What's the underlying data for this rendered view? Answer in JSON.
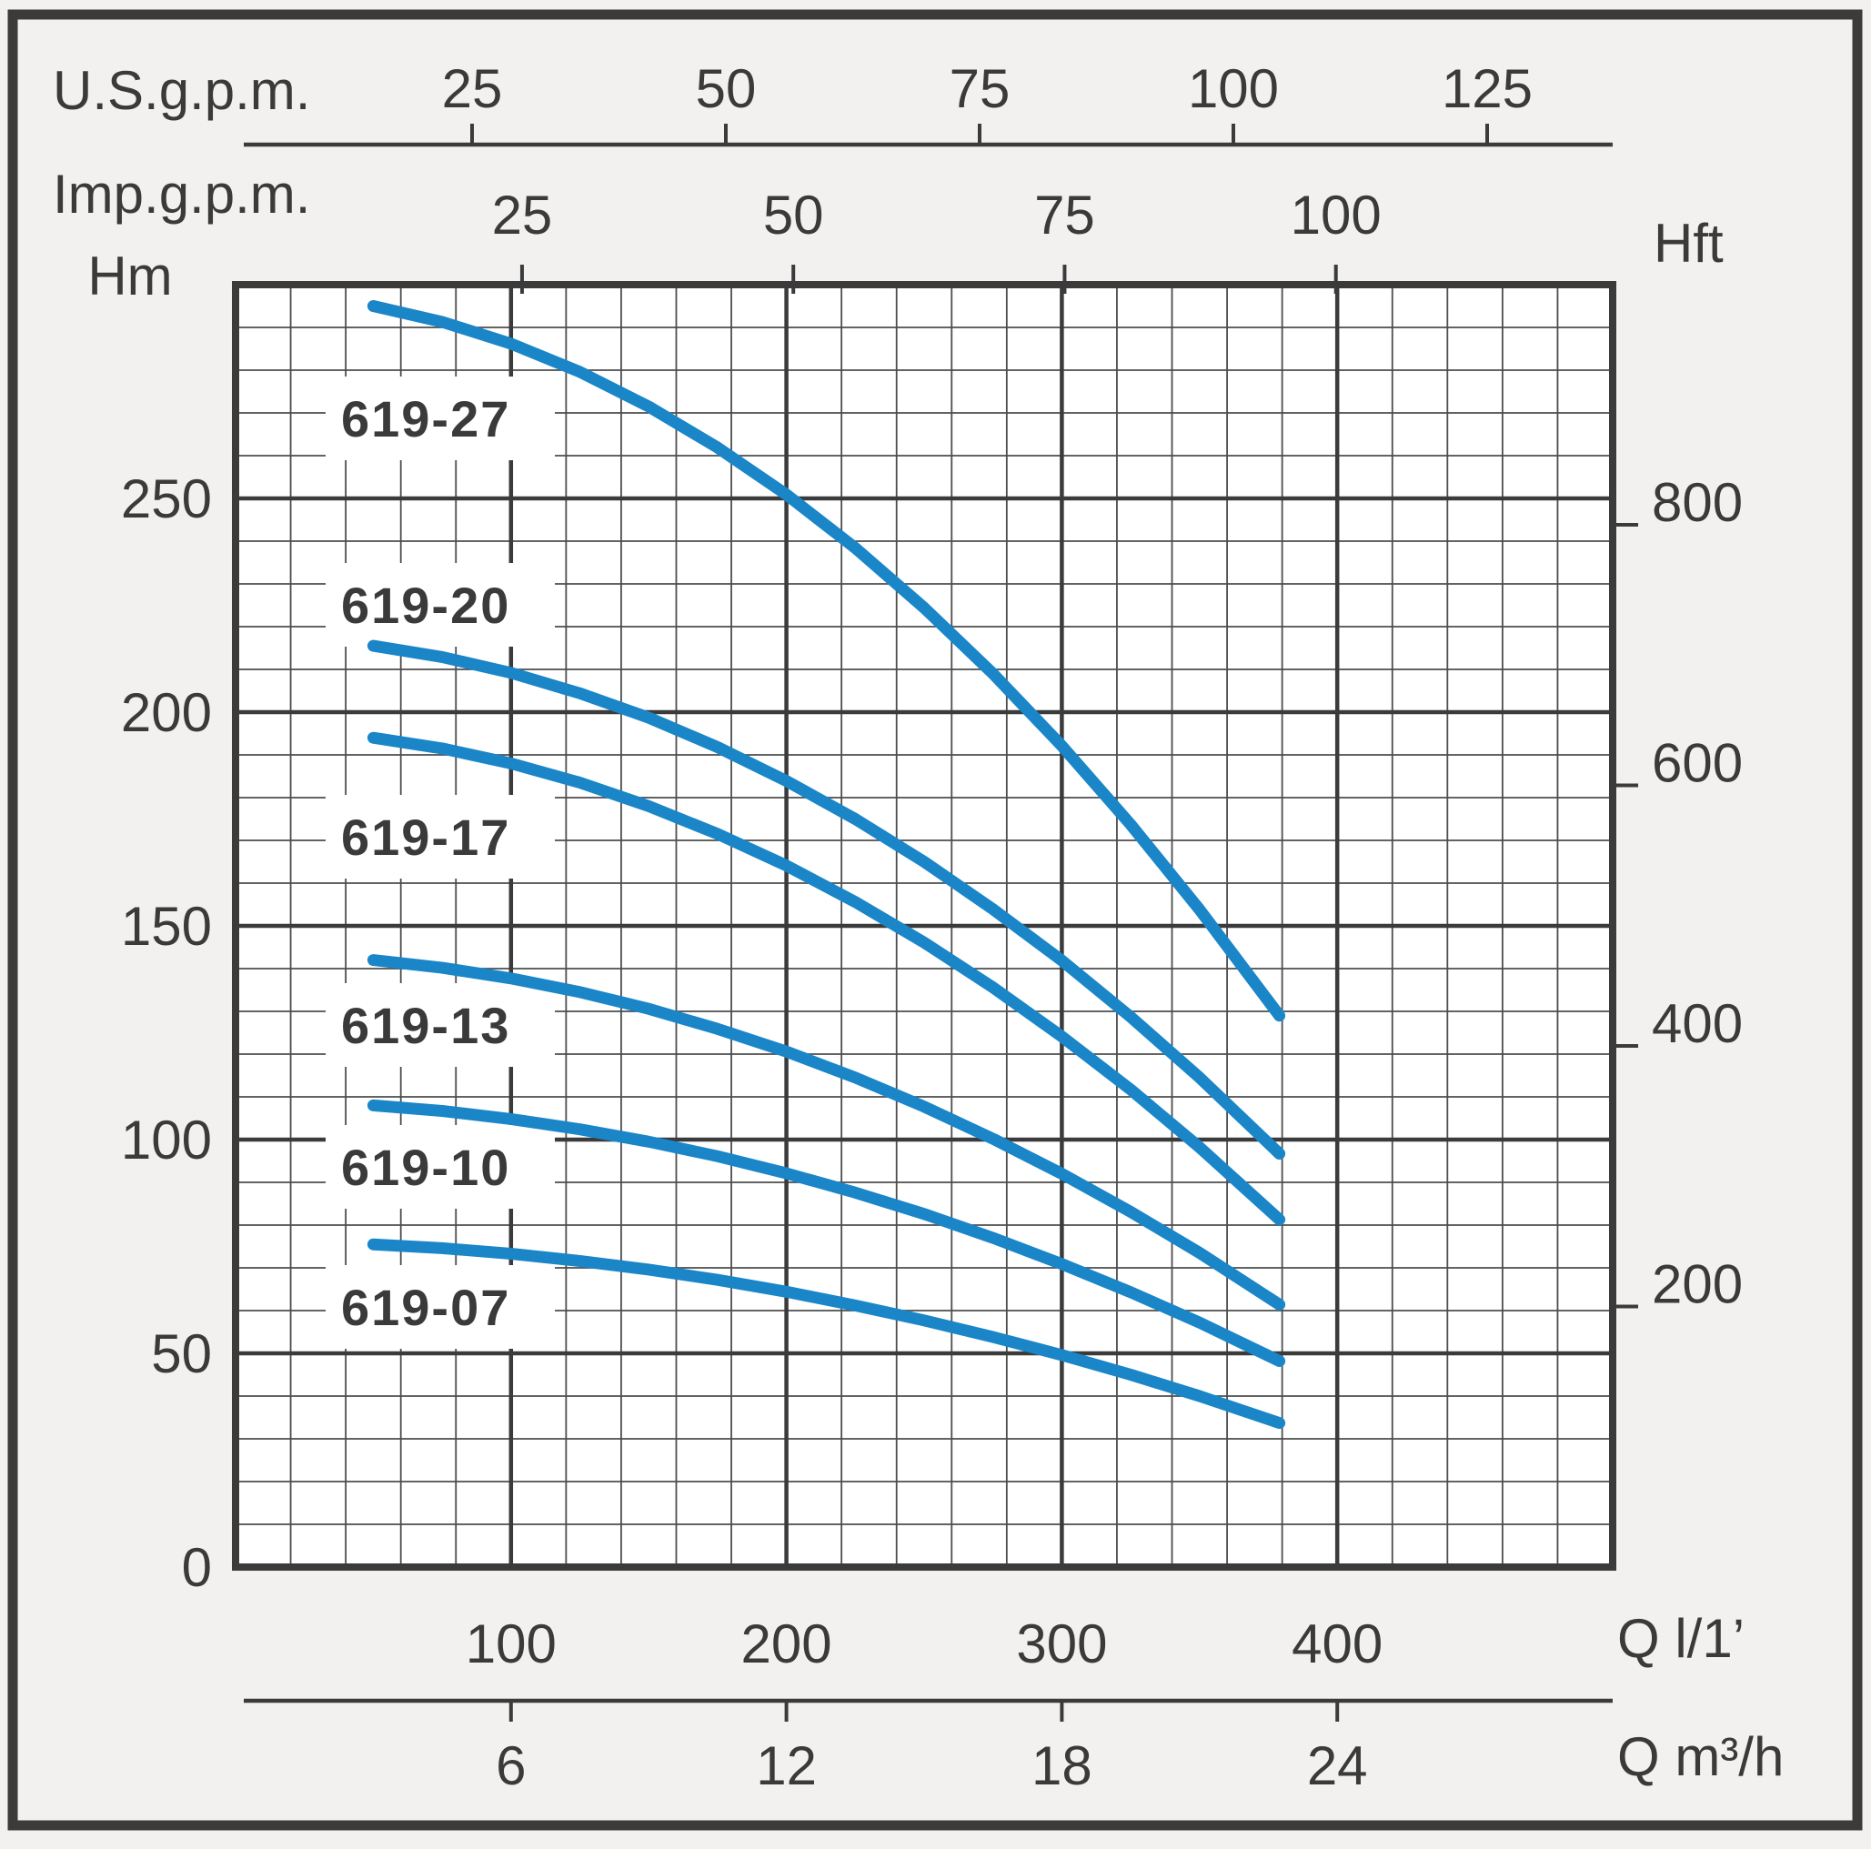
{
  "page": {
    "background": "#f2f1ef",
    "frame_color": "#3b3b3b",
    "text_color": "#3a3a3a",
    "plot_background": "#ffffff",
    "grid_major_color": "#3b3b3b",
    "grid_minor_color": "#4d4d4d"
  },
  "chart_data": {
    "type": "line",
    "grid": "on",
    "legend_position": "inline-labels-left",
    "curve_color": "#1a86c8",
    "axes": {
      "top_primary": {
        "label": "U.S.g.p.m.",
        "ticks": [
          25,
          50,
          75,
          100,
          125
        ]
      },
      "top_secondary": {
        "label": "Imp.g.p.m.",
        "ticks": [
          25,
          50,
          75,
          100
        ]
      },
      "left": {
        "label": "Hm",
        "ticks": [
          0,
          50,
          100,
          150,
          200,
          250
        ],
        "range": [
          0,
          300
        ]
      },
      "right": {
        "label": "Hft",
        "ticks": [
          200,
          400,
          600,
          800
        ]
      },
      "bottom_primary": {
        "label": "Q l/1’",
        "ticks": [
          100,
          200,
          300,
          400
        ],
        "range": [
          0,
          500
        ]
      },
      "bottom_secondary": {
        "label": "Q m³/h",
        "ticks": [
          6,
          12,
          18,
          24
        ]
      }
    },
    "x_units": "l/min",
    "y_units": "m",
    "series": [
      {
        "name": "619-27",
        "points": [
          [
            50,
            295.0
          ],
          [
            75,
            291.3
          ],
          [
            100,
            286.2
          ],
          [
            125,
            279.6
          ],
          [
            150,
            271.5
          ],
          [
            175,
            261.9
          ],
          [
            200,
            250.9
          ],
          [
            225,
            238.4
          ],
          [
            250,
            224.4
          ],
          [
            275,
            209.0
          ],
          [
            300,
            192.1
          ],
          [
            325,
            173.7
          ],
          [
            350,
            153.8
          ],
          [
            379,
            129.0
          ]
        ]
      },
      {
        "name": "619-20",
        "points": [
          [
            50,
            215.5
          ],
          [
            75,
            212.9
          ],
          [
            100,
            209.2
          ],
          [
            125,
            204.4
          ],
          [
            150,
            198.7
          ],
          [
            175,
            191.8
          ],
          [
            200,
            183.9
          ],
          [
            225,
            175.0
          ],
          [
            250,
            165.0
          ],
          [
            275,
            153.9
          ],
          [
            300,
            141.9
          ],
          [
            325,
            128.7
          ],
          [
            350,
            114.5
          ],
          [
            379,
            96.7
          ]
        ]
      },
      {
        "name": "619-17",
        "points": [
          [
            50,
            194.0
          ],
          [
            75,
            191.5
          ],
          [
            100,
            188.0
          ],
          [
            125,
            183.5
          ],
          [
            150,
            178.0
          ],
          [
            175,
            171.5
          ],
          [
            200,
            164.1
          ],
          [
            225,
            155.6
          ],
          [
            250,
            146.1
          ],
          [
            275,
            135.6
          ],
          [
            300,
            124.1
          ],
          [
            325,
            111.7
          ],
          [
            350,
            98.2
          ],
          [
            379,
            81.3
          ]
        ]
      },
      {
        "name": "619-13",
        "points": [
          [
            50,
            142.0
          ],
          [
            75,
            140.2
          ],
          [
            100,
            137.7
          ],
          [
            125,
            134.5
          ],
          [
            150,
            130.6
          ],
          [
            175,
            125.9
          ],
          [
            200,
            120.6
          ],
          [
            225,
            114.5
          ],
          [
            250,
            107.7
          ],
          [
            275,
            100.2
          ],
          [
            300,
            92.0
          ],
          [
            325,
            83.1
          ],
          [
            350,
            73.5
          ],
          [
            379,
            61.4
          ]
        ]
      },
      {
        "name": "619-10",
        "points": [
          [
            50,
            108.0
          ],
          [
            75,
            106.7
          ],
          [
            100,
            104.8
          ],
          [
            125,
            102.4
          ],
          [
            150,
            99.5
          ],
          [
            175,
            96.1
          ],
          [
            200,
            92.1
          ],
          [
            225,
            87.6
          ],
          [
            250,
            82.6
          ],
          [
            275,
            77.0
          ],
          [
            300,
            70.9
          ],
          [
            325,
            64.3
          ],
          [
            350,
            57.2
          ],
          [
            379,
            48.2
          ]
        ]
      },
      {
        "name": "619-07",
        "points": [
          [
            50,
            75.5
          ],
          [
            75,
            74.6
          ],
          [
            100,
            73.3
          ],
          [
            125,
            71.6
          ],
          [
            150,
            69.6
          ],
          [
            175,
            67.2
          ],
          [
            200,
            64.4
          ],
          [
            225,
            61.2
          ],
          [
            250,
            57.7
          ],
          [
            275,
            53.8
          ],
          [
            300,
            49.6
          ],
          [
            325,
            45.0
          ],
          [
            350,
            40.0
          ],
          [
            379,
            33.7
          ]
        ]
      }
    ]
  }
}
